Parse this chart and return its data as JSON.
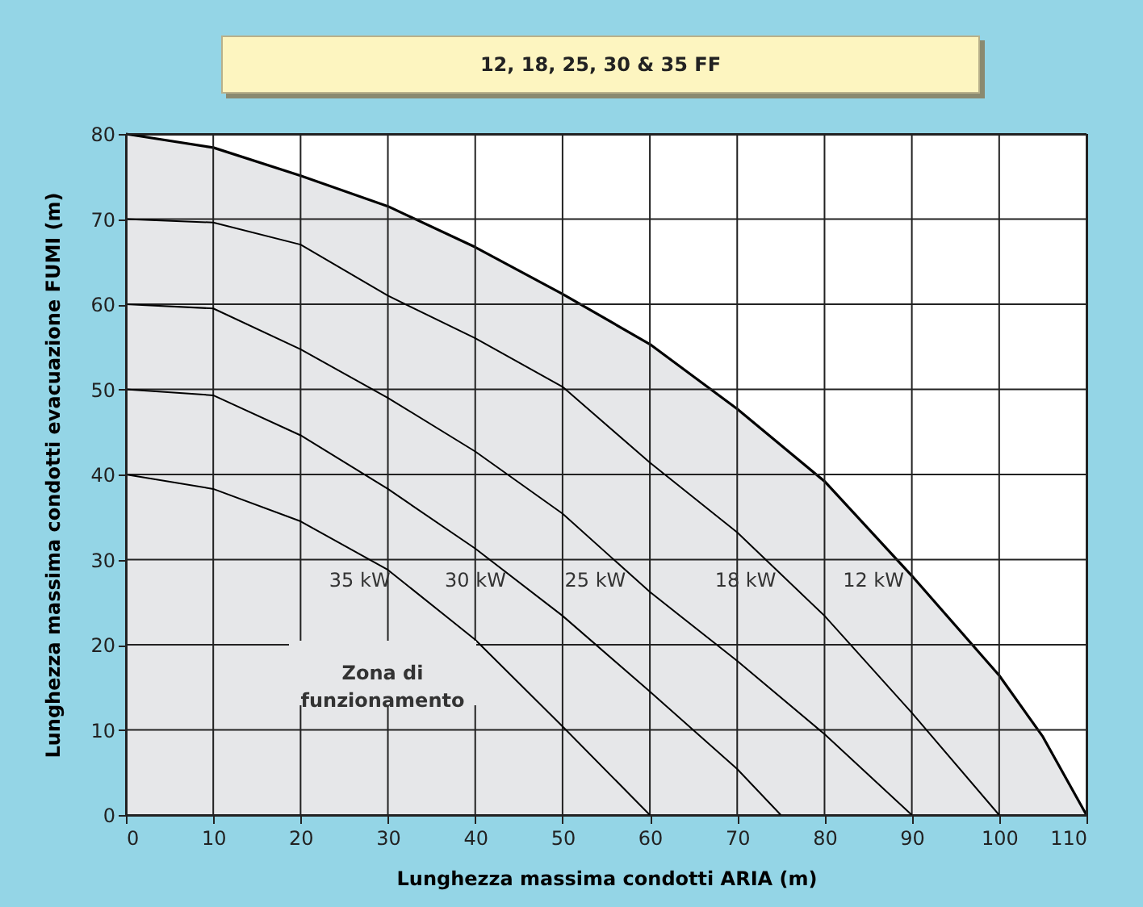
{
  "chart_data": {
    "type": "line",
    "title": "12, 18, 25, 30 & 35 FF",
    "xlabel": "Lunghezza massima condotti ARIA (m)",
    "ylabel": "Lunghezza massima condotti evacuazione FUMI (m)",
    "series": [
      {
        "name": "12 kW",
        "type": "area",
        "color": "#e6e7e9",
        "x": [
          0,
          10,
          20,
          30,
          40,
          50,
          60,
          70,
          80,
          90,
          100,
          105,
          110
        ],
        "values": [
          80,
          78.4,
          75.1,
          71.5,
          66.7,
          61.2,
          55.3,
          47.7,
          39.2,
          28.1,
          16.4,
          9.2,
          0
        ]
      },
      {
        "name": "18 kW",
        "color": "#000000",
        "x": [
          0,
          10,
          20,
          30,
          40,
          50,
          60,
          70,
          80,
          90,
          100
        ],
        "values": [
          70,
          69.6,
          67,
          61,
          56,
          50.3,
          41.4,
          33.2,
          23.4,
          12,
          0
        ]
      },
      {
        "name": "25 kW",
        "color": "#000000",
        "x": [
          0,
          10,
          20,
          30,
          40,
          50,
          60,
          70,
          80,
          90
        ],
        "values": [
          60,
          59.5,
          54.7,
          49,
          42.7,
          35.4,
          26.2,
          18.1,
          9.5,
          0
        ]
      },
      {
        "name": "30 kW",
        "color": "#000000",
        "x": [
          0,
          10,
          20,
          30,
          40,
          50,
          60,
          70,
          75
        ],
        "values": [
          50,
          49.3,
          44.6,
          38.3,
          31.3,
          23.4,
          14.5,
          5.4,
          0
        ]
      },
      {
        "name": "35 kW",
        "color": "#000000",
        "x": [
          0,
          10,
          20,
          30,
          40,
          50,
          60
        ],
        "values": [
          40,
          38.3,
          34.5,
          28.8,
          20.6,
          10.4,
          0
        ]
      }
    ],
    "annotations": [
      "Zona di funzionamento"
    ],
    "xlim": [
      0,
      110
    ],
    "xticks": [
      0,
      10,
      20,
      30,
      40,
      50,
      60,
      70,
      80,
      90,
      100,
      110
    ],
    "ylim": [
      0,
      80
    ],
    "yticks": [
      0,
      10,
      20,
      30,
      40,
      50,
      60,
      70,
      80
    ],
    "grid": true
  }
}
